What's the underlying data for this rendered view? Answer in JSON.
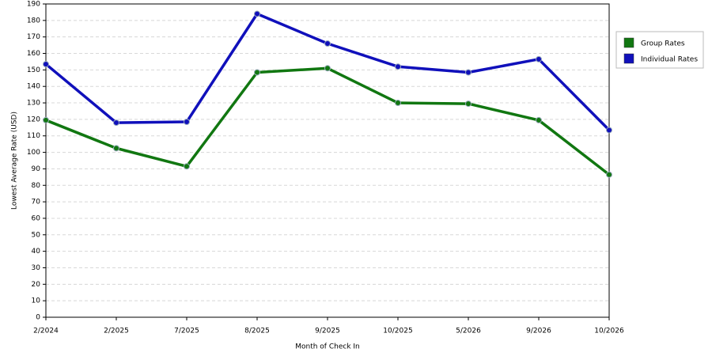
{
  "chart_data": {
    "type": "line",
    "x_label": "Month of Check In",
    "y_label": "Lowest Average Rate (USD)",
    "categories": [
      "2/2024",
      "2/2025",
      "7/2025",
      "8/2025",
      "9/2025",
      "10/2025",
      "5/2026",
      "9/2026",
      "10/2026"
    ],
    "series": [
      {
        "name": "Group Rates",
        "color": "#117711",
        "values": [
          119.5,
          102.5,
          91.5,
          148.5,
          151,
          130,
          129.5,
          119.5,
          86.5
        ]
      },
      {
        "name": "Individual Rates",
        "color": "#1010bb",
        "values": [
          153.5,
          118,
          118.5,
          184,
          166,
          152,
          148.5,
          156.5,
          113.5
        ]
      }
    ],
    "ylim": [
      0,
      190
    ],
    "yticks": [
      0,
      10,
      20,
      30,
      40,
      50,
      60,
      70,
      80,
      90,
      100,
      110,
      120,
      130,
      140,
      150,
      160,
      170,
      180,
      190
    ],
    "grid": true,
    "legend": "right"
  }
}
